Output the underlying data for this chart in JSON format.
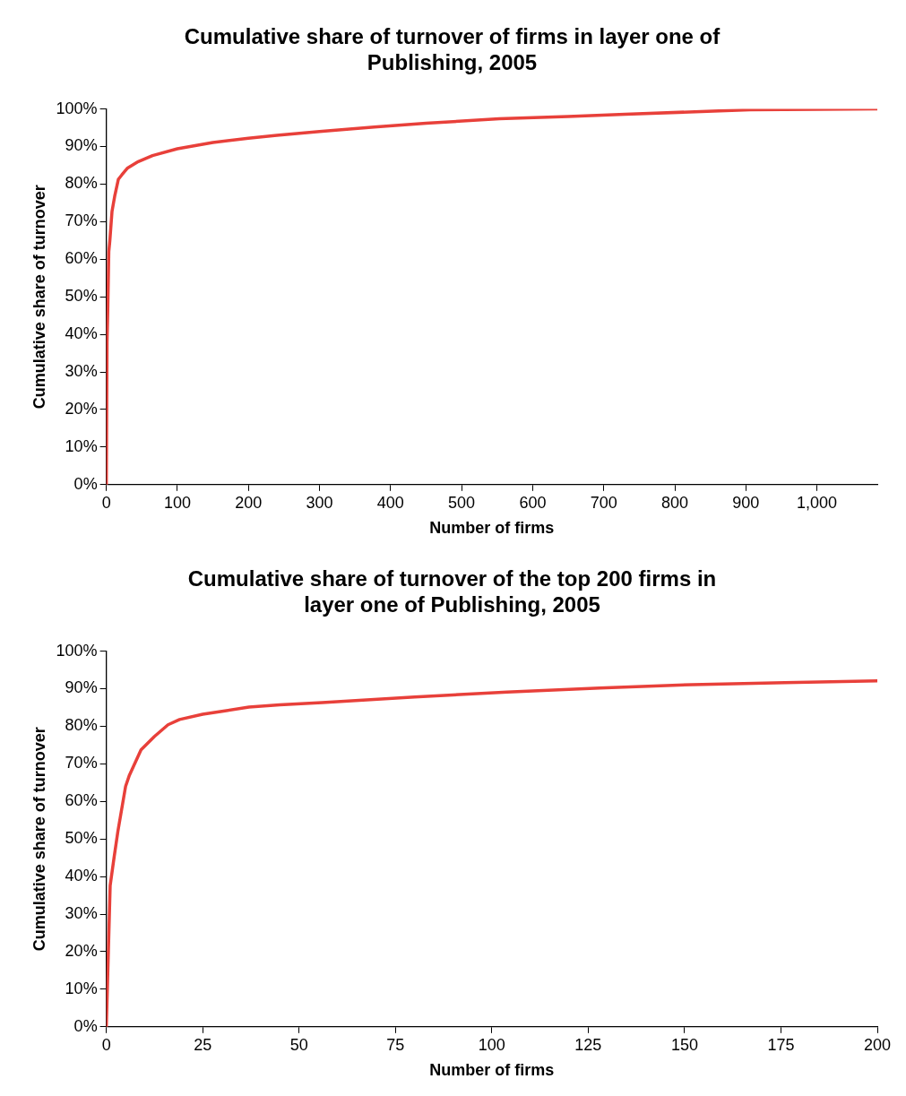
{
  "chart_data": [
    {
      "type": "line",
      "title": "Cumulative share of turnover of firms in layer one of Publishing, 2005",
      "xlabel": "Number of firms",
      "ylabel": "Cumulative share of turnover",
      "grid": false,
      "legend": false,
      "marker": "none",
      "line_style": "solid",
      "series": [
        {
          "color": "#e8403a",
          "x": [
            0,
            1,
            2,
            3.5,
            5,
            8,
            12,
            17,
            22,
            30,
            45,
            65,
            100,
            150,
            200,
            240,
            300,
            377,
            450,
            553,
            650,
            730,
            820,
            906,
            1000,
            1085
          ],
          "values": [
            0,
            38,
            46,
            62,
            65,
            72.7,
            77,
            81.3,
            82.5,
            84.3,
            86,
            87.6,
            89.4,
            91.1,
            92.2,
            93,
            94,
            95.2,
            96.2,
            97.4,
            98,
            98.6,
            99.2,
            99.8,
            99.9,
            100
          ]
        }
      ],
      "xlim": [
        0,
        1085
      ],
      "xticks": [
        0,
        100,
        200,
        300,
        400,
        500,
        600,
        700,
        800,
        900,
        {
          "value": 1000,
          "label": "1,000"
        }
      ],
      "ylim": [
        0,
        100
      ],
      "yticks": [
        {
          "value": 0,
          "label": "0%"
        },
        {
          "value": 10,
          "label": "10%"
        },
        {
          "value": 20,
          "label": "20%"
        },
        {
          "value": 30,
          "label": "30%"
        },
        {
          "value": 40,
          "label": "40%"
        },
        {
          "value": 50,
          "label": "50%"
        },
        {
          "value": 60,
          "label": "60%"
        },
        {
          "value": 70,
          "label": "70%"
        },
        {
          "value": 80,
          "label": "80%"
        },
        {
          "value": 90,
          "label": "90%"
        },
        {
          "value": 100,
          "label": "100%"
        }
      ]
    },
    {
      "type": "line",
      "title": "Cumulative share of turnover of the top 200 firms in layer one of Publishing, 2005",
      "xlabel": "Number of firms",
      "ylabel": "Cumulative share of turnover",
      "grid": false,
      "legend": false,
      "marker": "none",
      "line_style": "solid",
      "series": [
        {
          "color": "#e8403a",
          "x": [
            0,
            1,
            2,
            3,
            5,
            6,
            9,
            12.5,
            16,
            19,
            25,
            30,
            37,
            45,
            56,
            80,
            104,
            128,
            152,
            176,
            200
          ],
          "values": [
            0,
            37.6,
            45,
            52,
            64,
            67,
            73.7,
            77.3,
            80.4,
            81.8,
            83.2,
            84,
            85.1,
            85.7,
            86.3,
            87.8,
            89.1,
            90.2,
            91.1,
            91.6,
            92.1
          ]
        }
      ],
      "xlim": [
        0,
        200
      ],
      "xticks": [
        0,
        25,
        50,
        75,
        100,
        125,
        150,
        175,
        200
      ],
      "ylim": [
        0,
        100
      ],
      "yticks": [
        {
          "value": 0,
          "label": "0%"
        },
        {
          "value": 10,
          "label": "10%"
        },
        {
          "value": 20,
          "label": "20%"
        },
        {
          "value": 30,
          "label": "30%"
        },
        {
          "value": 40,
          "label": "40%"
        },
        {
          "value": 50,
          "label": "50%"
        },
        {
          "value": 60,
          "label": "60%"
        },
        {
          "value": 70,
          "label": "70%"
        },
        {
          "value": 80,
          "label": "80%"
        },
        {
          "value": 90,
          "label": "90%"
        },
        {
          "value": 100,
          "label": "100%"
        }
      ]
    }
  ]
}
